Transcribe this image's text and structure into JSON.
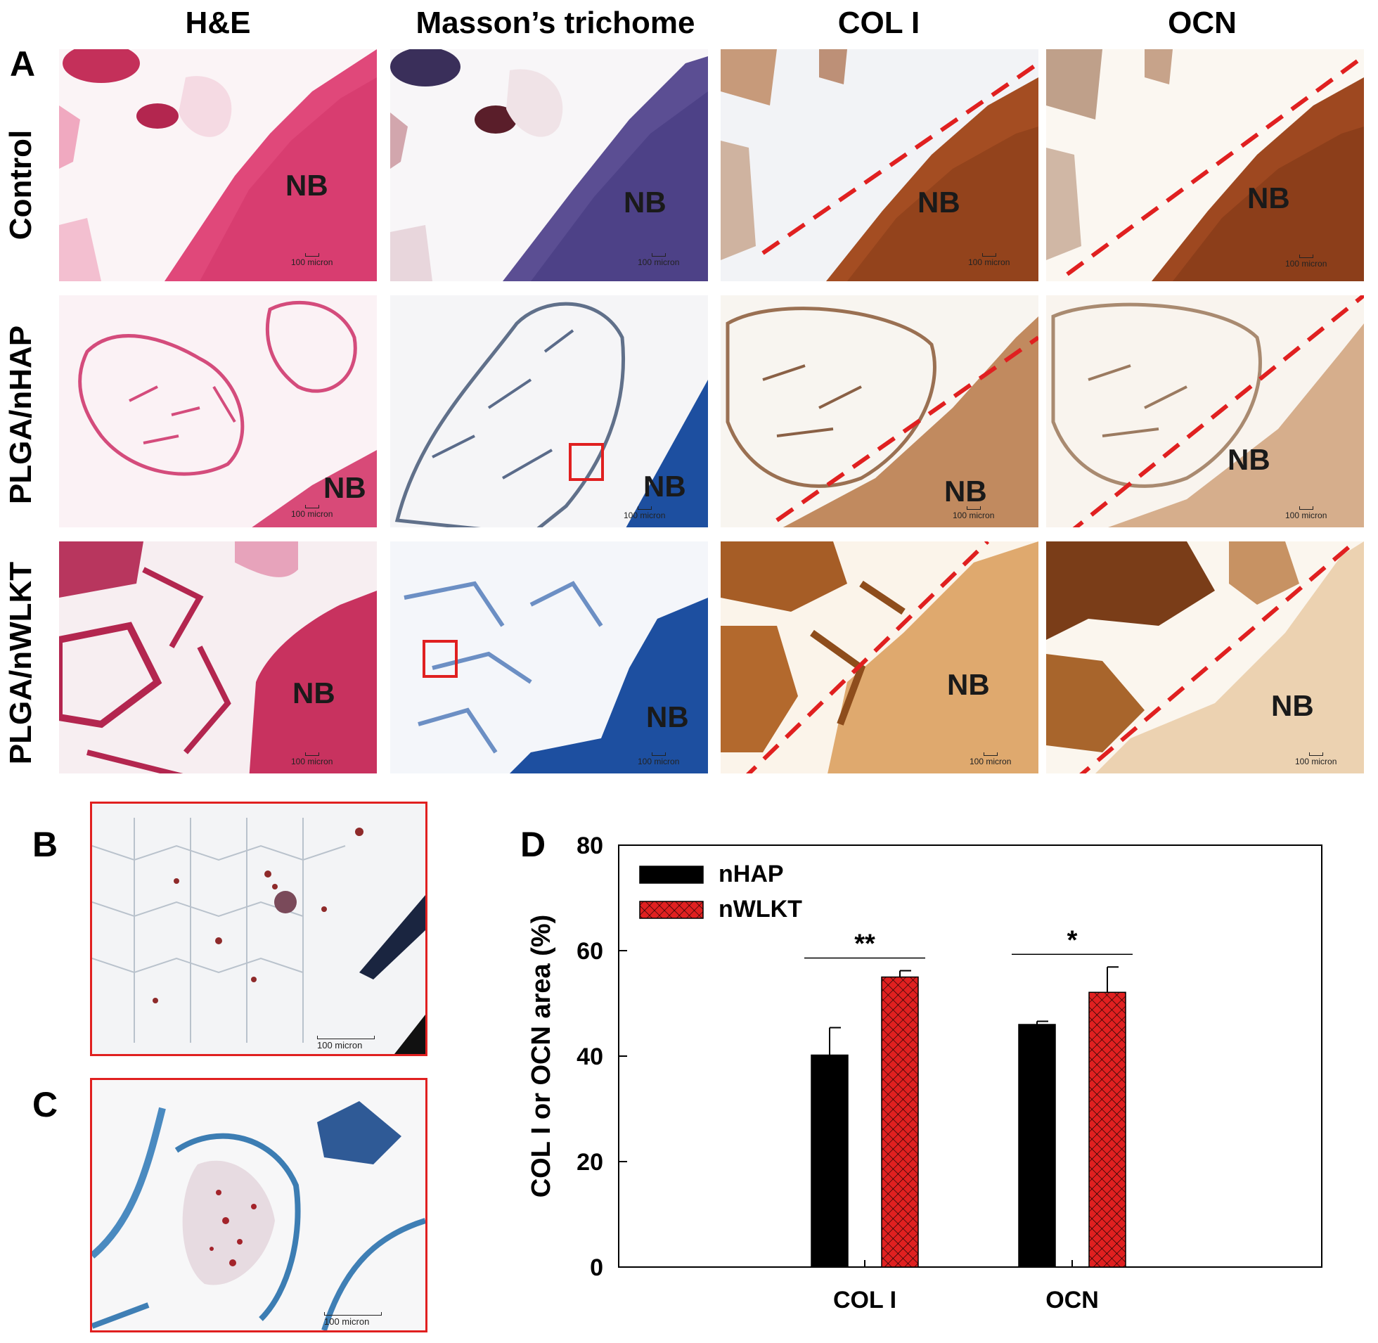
{
  "panels": {
    "A": "A",
    "B": "B",
    "C": "C",
    "D": "D"
  },
  "columns": [
    "H&E",
    "Masson’s trichome",
    "COL I",
    "OCN"
  ],
  "rows": [
    "Control",
    "PLGA/nHAP",
    "PLGA/nWLKT"
  ],
  "tile_label": "NB",
  "scale_label": "100 micron",
  "inset_scale_label": "100 micron",
  "colors": {
    "he_pink": "#d63b6e",
    "he_light": "#f2c2d3",
    "masson_blue": "#1d4fa0",
    "masson_purple": "#5b4e93",
    "ihc_brown": "#a44d22",
    "ihc_tan": "#d9a066",
    "annotation_red": "#e02020",
    "nhap_bar": "#000000",
    "nwlkt_bar": "#e02020"
  },
  "chart_data": {
    "type": "bar",
    "categories": [
      "COL I",
      "OCN"
    ],
    "series": [
      {
        "name": "nHAP",
        "values": [
          40.2,
          46.0
        ],
        "errors": [
          5.2,
          0.6
        ]
      },
      {
        "name": "nWLKT",
        "values": [
          55.0,
          52.1
        ],
        "errors": [
          1.2,
          4.8
        ]
      }
    ],
    "ylabel": "COL I or OCN area (%)",
    "xlabel": "",
    "ylim": [
      0,
      80
    ],
    "yticks": [
      0,
      20,
      40,
      60,
      80
    ],
    "significance": [
      "**",
      "*"
    ],
    "legend_position": "top-left",
    "grid": false
  }
}
